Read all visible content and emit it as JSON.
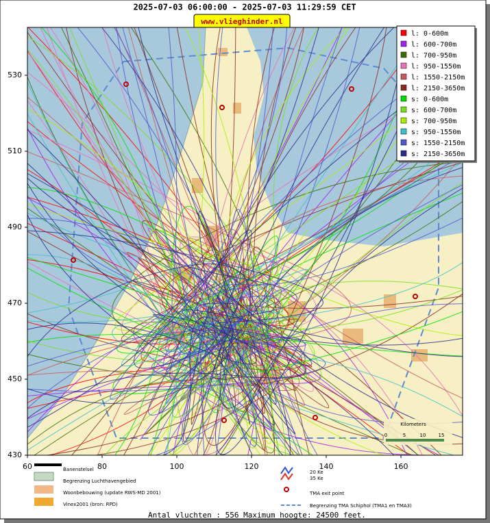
{
  "header": {
    "title": "2025-07-03 06:00:00 - 2025-07-03 11:29:59 CET",
    "site": "www.vlieghinder.nl"
  },
  "map": {
    "xlim": [
      60,
      176.5
    ],
    "ylim": [
      430,
      542.6
    ],
    "xticks": [
      60,
      80,
      100,
      120,
      140,
      160
    ],
    "yticks": [
      430,
      450,
      470,
      490,
      510,
      530
    ],
    "legend": [
      {
        "label": "l: 0-600m",
        "color": "#ff0000"
      },
      {
        "label": "l: 600-700m",
        "color": "#a020f0"
      },
      {
        "label": "l: 700-950m",
        "color": "#3c6e00"
      },
      {
        "label": "l: 950-1550m",
        "color": "#e870b8"
      },
      {
        "label": "l: 1550-2150m",
        "color": "#c85a5a"
      },
      {
        "label": "l: 2150-3650m",
        "color": "#8b2a1e"
      },
      {
        "label": "s: 0-600m",
        "color": "#00e000"
      },
      {
        "label": "s: 600-700m",
        "color": "#78e020"
      },
      {
        "label": "s: 700-950m",
        "color": "#a8f000"
      },
      {
        "label": "s: 950-1550m",
        "color": "#40c0c8"
      },
      {
        "label": "s: 1550-2150m",
        "color": "#5058d0"
      },
      {
        "label": "s: 2150-3650m",
        "color": "#2c2c8c"
      }
    ],
    "scale": {
      "title": "Kilometers",
      "ticks": [
        0,
        5,
        10,
        15
      ]
    }
  },
  "key": {
    "runways": "Banenstelsel",
    "airport_boundary": "Begrenzing Luchthavengebied",
    "housing": "Woonbebouwing (update RWS-MD 2001)",
    "vinex": "Vinex2001 (bron: RPD)",
    "ke20": "20 Ke",
    "ke35": "35 Ke",
    "tma_exit": "TMA exit point",
    "tma_boundary": "Begrenzing TMA Schiphol  (TMA1 en TMA3)"
  },
  "footer": "Antal vluchten : 556 Maximum hoogte: 24500 feet."
}
